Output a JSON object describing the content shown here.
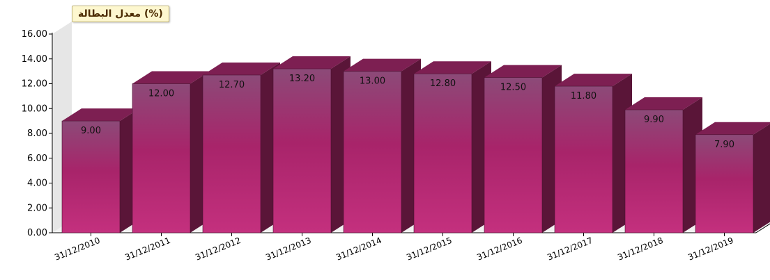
{
  "colors": {
    "bar_front_light": "#8c4a78",
    "bar_front_mid": "#a8246a",
    "bar_front_bright": "#c4307e",
    "bar_top": "#7d1f52",
    "bar_side": "#5a1538",
    "back_wall": "#e6e6e6",
    "axis": "#000000"
  },
  "chart_data": {
    "type": "bar",
    "title": "(%) معدل البطالة",
    "categories": [
      "31/12/2010",
      "31/12/2011",
      "31/12/2012",
      "31/12/2013",
      "31/12/2014",
      "31/12/2015",
      "31/12/2016",
      "31/12/2017",
      "31/12/2018",
      "31/12/2019"
    ],
    "values": [
      9.0,
      12.0,
      12.7,
      13.2,
      13.0,
      12.8,
      12.5,
      11.8,
      9.9,
      7.9
    ],
    "value_labels": [
      "9.00",
      "12.00",
      "12.70",
      "13.20",
      "13.00",
      "12.80",
      "12.50",
      "11.80",
      "9.90",
      "7.90"
    ],
    "yticks": [
      "0.00",
      "2.00",
      "4.00",
      "6.00",
      "8.00",
      "10.00",
      "12.00",
      "14.00",
      "16.00"
    ],
    "ylim": [
      0,
      16
    ],
    "xlabel": "",
    "ylabel": "",
    "grid": false,
    "legend": "none",
    "style": "3d-bar"
  }
}
